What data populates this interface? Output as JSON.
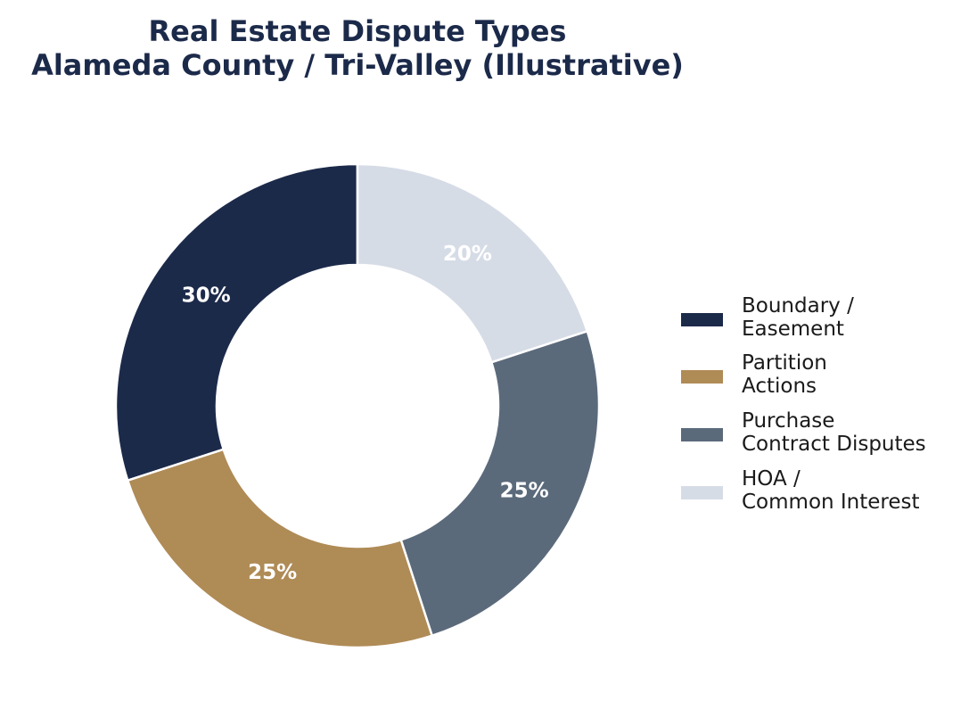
{
  "chart_data": {
    "type": "pie",
    "variant": "donut",
    "title_lines": [
      "Real Estate Dispute Types",
      "Alameda County / Tri-Valley (Illustrative)"
    ],
    "start": "top",
    "direction": "counterclockwise",
    "slices": [
      {
        "label_lines": [
          "Boundary /",
          "Easement"
        ],
        "value": 30,
        "display": "30%",
        "color": "#1c2a4a"
      },
      {
        "label_lines": [
          "Partition",
          "Actions"
        ],
        "value": 25,
        "display": "25%",
        "color": "#af8b56"
      },
      {
        "label_lines": [
          "Purchase",
          "Contract Disputes"
        ],
        "value": 25,
        "display": "25%",
        "color": "#5b6a7b"
      },
      {
        "label_lines": [
          "HOA /",
          "Common Interest"
        ],
        "value": 20,
        "display": "20%",
        "color": "#d6dce6"
      }
    ],
    "legend_position": "right"
  }
}
